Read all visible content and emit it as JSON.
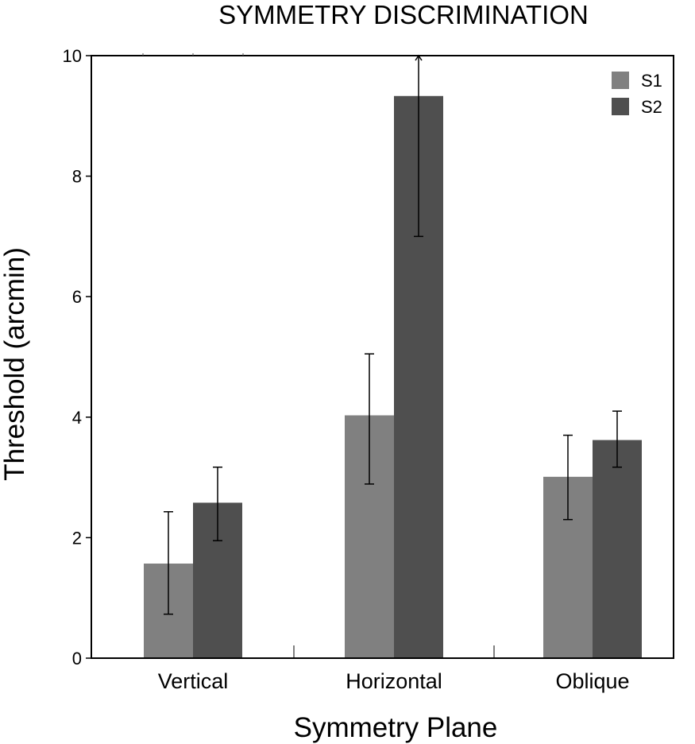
{
  "chart_data": {
    "type": "bar",
    "title": "SYMMETRY DISCRIMINATION",
    "xlabel": "Symmetry Plane",
    "ylabel": "Threshold (arcmin)",
    "ylim": [
      0,
      10
    ],
    "yticks": [
      0,
      2,
      4,
      6,
      8,
      10
    ],
    "categories": [
      "Vertical",
      "Horizontal",
      "Oblique"
    ],
    "series": [
      {
        "name": "S1",
        "color": "#808080",
        "values": [
          1.57,
          4.03,
          3.01
        ],
        "err_low": [
          0.73,
          2.89,
          2.3
        ],
        "err_high": [
          2.43,
          5.05,
          3.7
        ],
        "err_open_top": [
          false,
          false,
          false
        ]
      },
      {
        "name": "S2",
        "color": "#4f4f4f",
        "values": [
          2.58,
          9.33,
          3.62
        ],
        "err_low": [
          1.95,
          7.0,
          3.17
        ],
        "err_high": [
          3.17,
          10,
          4.1
        ],
        "err_open_top": [
          false,
          true,
          false
        ]
      }
    ],
    "legend": {
      "position": "top-right"
    },
    "grid": false
  }
}
